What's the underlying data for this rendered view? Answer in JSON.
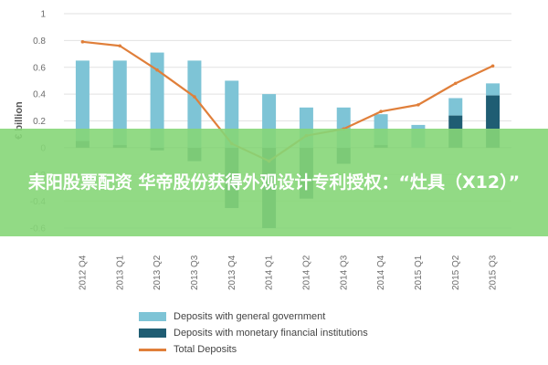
{
  "chart_data": {
    "type": "bar",
    "ylabel": "€ billion",
    "ylim": [
      -0.6,
      1
    ],
    "yticks": [
      "1",
      "0.8",
      "0.6",
      "0.4",
      "0.2",
      "0",
      "-0.2",
      "-0.4",
      "-0.6"
    ],
    "categories": [
      "2012 Q4",
      "2013 Q1",
      "2013 Q2",
      "2013 Q3",
      "2013 Q4",
      "2014 Q1",
      "2014 Q2",
      "2014 Q3",
      "2014 Q4",
      "2015 Q1",
      "2015 Q2",
      "2015 Q3"
    ],
    "series": [
      {
        "name": "Deposits with general government",
        "kind": "bar",
        "color": "#7ec4d6",
        "values": [
          0.6,
          0.63,
          0.71,
          0.65,
          0.5,
          0.4,
          0.3,
          0.3,
          0.23,
          0.17,
          0.13,
          0.09
        ]
      },
      {
        "name": "Deposits with monetary financial institutions",
        "kind": "bar",
        "color": "#1f5d73",
        "values": [
          0.05,
          0.02,
          -0.02,
          -0.1,
          -0.45,
          -0.6,
          -0.38,
          -0.12,
          0.02,
          0.0,
          0.24,
          0.39
        ]
      },
      {
        "name": "Total Deposits",
        "kind": "line",
        "color": "#e07f3a",
        "values": [
          0.79,
          0.76,
          0.58,
          0.38,
          0.03,
          -0.1,
          0.09,
          0.14,
          0.27,
          0.32,
          0.48,
          0.61
        ]
      }
    ]
  },
  "banner": {
    "text": "耒阳股票配资 华帝股份获得外观设计专利授权：“灶具（X12）”"
  }
}
